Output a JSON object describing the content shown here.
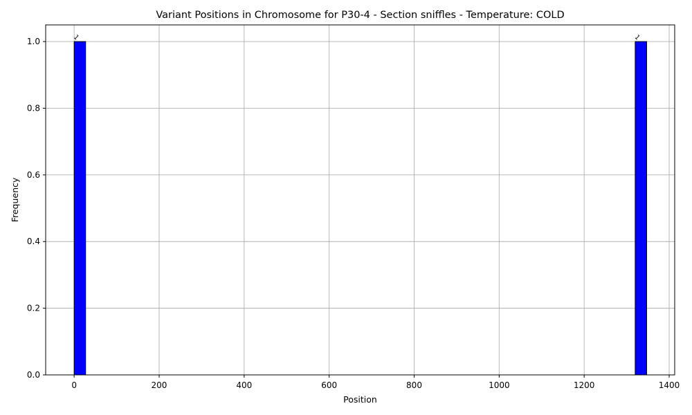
{
  "chart_data": {
    "type": "bar",
    "title": "Variant Positions in Chromosome for P30-4 - Section sniffles - Temperature: COLD",
    "xlabel": "Position",
    "ylabel": "Frequency",
    "xlim": [
      -67,
      1413
    ],
    "ylim": [
      0,
      1.05
    ],
    "xticks": [
      0,
      200,
      400,
      600,
      800,
      1000,
      1200,
      1400
    ],
    "xtick_labels": [
      "0",
      "200",
      "400",
      "600",
      "800",
      "1000",
      "1200",
      "1400"
    ],
    "yticks": [
      0.0,
      0.2,
      0.4,
      0.6,
      0.8,
      1.0
    ],
    "ytick_labels": [
      "0.0",
      "0.2",
      "0.4",
      "0.6",
      "0.8",
      "1.0"
    ],
    "grid": true,
    "bar_color": "#0000ff",
    "edge_color": "#000000",
    "bins": [
      {
        "x0": 0,
        "x1": 27,
        "value": 1,
        "label": "1"
      },
      {
        "x0": 1320,
        "x1": 1347,
        "value": 1,
        "label": "1"
      }
    ]
  }
}
